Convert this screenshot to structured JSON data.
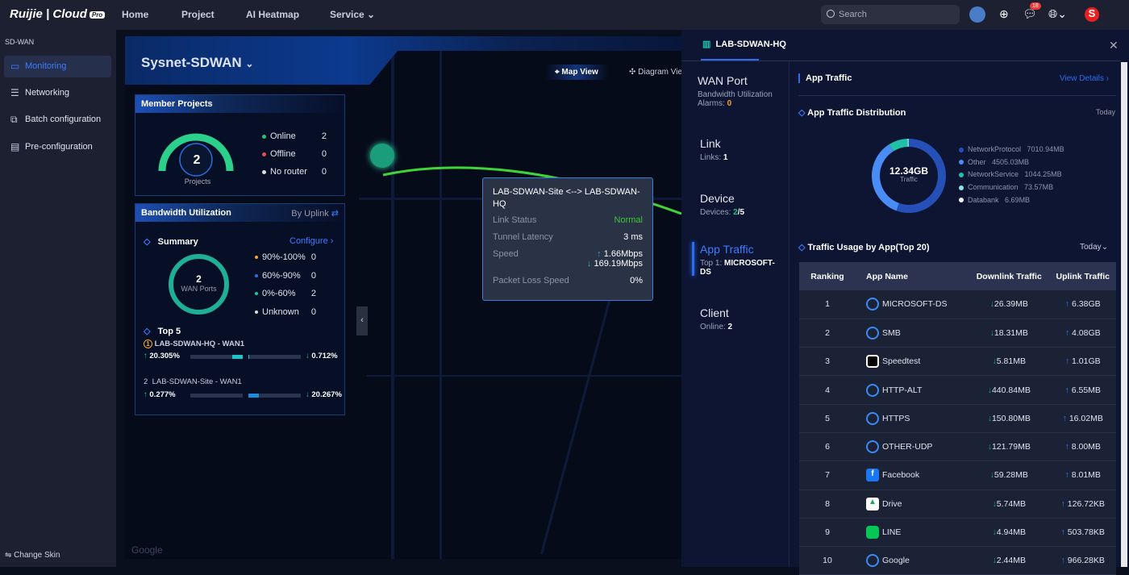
{
  "topbar": {
    "brand": "Ruijie | Cloud",
    "brand_badge": "Pro",
    "nav": [
      "Home",
      "Project",
      "AI Heatmap",
      "Service"
    ],
    "search_placeholder": "Search",
    "notification_count": "18",
    "avatar_letter": "S"
  },
  "sidebar": {
    "section": "SD-WAN",
    "items": [
      {
        "label": "Monitoring",
        "icon": "monitor-icon",
        "active": true
      },
      {
        "label": "Networking",
        "icon": "sliders-icon"
      },
      {
        "label": "Batch configuration",
        "icon": "batch-icon"
      },
      {
        "label": "Pre-configuration",
        "icon": "preconfig-icon"
      }
    ],
    "footer": "Change Skin"
  },
  "main": {
    "title": "Sysnet-SDWAN",
    "views": [
      "Map View",
      "Diagram View"
    ],
    "map_watermark": "Google",
    "member_projects": {
      "title": "Member Projects",
      "total": "2",
      "gauge_label": "Projects",
      "stats": [
        {
          "label": "Online",
          "value": "2",
          "color": "#22c47a"
        },
        {
          "label": "Offline",
          "value": "0",
          "color": "#f04b4b"
        },
        {
          "label": "No router",
          "value": "0",
          "color": "#dddddd"
        }
      ]
    },
    "bandwidth": {
      "title": "Bandwidth Utilization",
      "by": "By Uplink",
      "summary": "Summary",
      "configure": "Configure",
      "ports": "2",
      "ports_label": "WAN Ports",
      "ranges": [
        {
          "label": "90%-100%",
          "value": "0",
          "color": "#f5a623"
        },
        {
          "label": "60%-90%",
          "value": "0",
          "color": "#2d6cf0"
        },
        {
          "label": "0%-60%",
          "value": "2",
          "color": "#1fc2a8"
        },
        {
          "label": "Unknown",
          "value": "0",
          "color": "#dddddd"
        }
      ],
      "top5_title": "Top 5",
      "top5": [
        {
          "rank": "1",
          "name": "LAB-SDWAN-HQ - WAN1",
          "up": "20.305%",
          "down": "0.712%"
        },
        {
          "rank": "2",
          "name": "LAB-SDWAN-Site - WAN1",
          "up": "0.277%",
          "down": "20.267%"
        }
      ]
    },
    "tooltip": {
      "title": "LAB-SDWAN-Site <--> LAB-SDWAN-HQ",
      "link_status_label": "Link Status",
      "link_status": "Normal",
      "latency_label": "Tunnel Latency",
      "latency": "3 ms",
      "speed_label": "Speed",
      "speed_up": "1.66Mbps",
      "speed_down": "169.19Mbps",
      "loss_label": "Packet Loss Speed",
      "loss": "0%"
    }
  },
  "panel": {
    "title": "LAB-SDWAN-HQ",
    "nav": [
      {
        "title": "WAN Port",
        "sub": "Bandwidth Utilization",
        "sub2": "Alarms: ",
        "val": "0"
      },
      {
        "title": "Link",
        "sub": "Links: ",
        "val": "1"
      },
      {
        "title": "Device",
        "sub": "Devices: ",
        "val": "2",
        "val2": "/5"
      },
      {
        "title": "App Traffic",
        "sub": "Top 1: ",
        "val": "MICROSOFT-DS",
        "active": true
      },
      {
        "title": "Client",
        "sub": "Online: ",
        "val": "2"
      }
    ],
    "section": "App Traffic",
    "view_details": "View Details",
    "dist_title": "App Traffic Distribution",
    "dist_period": "Today",
    "total": "12.34GB",
    "total_label": "Traffic",
    "distribution": [
      {
        "name": "NetworkProtocol",
        "value": "7010.94MB",
        "mb": 7010.94,
        "color": "#2550b8"
      },
      {
        "name": "Other",
        "value": "4505.03MB",
        "mb": 4505.03,
        "color": "#4a8cf5"
      },
      {
        "name": "NetworkService",
        "value": "1044.25MB",
        "mb": 1044.25,
        "color": "#1fc2a8"
      },
      {
        "name": "Communication",
        "value": "73.57MB",
        "mb": 73.57,
        "color": "#8be8e0"
      },
      {
        "name": "Databank",
        "value": "6.69MB",
        "mb": 6.69,
        "color": "#f0f2f8"
      }
    ],
    "usage_title": "Traffic Usage by App(Top 20)",
    "usage_period": "Today",
    "columns": [
      "Ranking",
      "App Name",
      "Downlink Traffic",
      "Uplink Traffic"
    ],
    "rows": [
      [
        "1",
        "MICROSOFT-DS",
        "26.39MB",
        "6.38GB",
        "globe"
      ],
      [
        "2",
        "SMB",
        "18.31MB",
        "4.08GB",
        "globe"
      ],
      [
        "3",
        "Speedtest",
        "5.81MB",
        "1.01GB",
        "speedtest"
      ],
      [
        "4",
        "HTTP-ALT",
        "440.84MB",
        "6.55MB",
        "globe"
      ],
      [
        "5",
        "HTTPS",
        "150.80MB",
        "16.02MB",
        "globe"
      ],
      [
        "6",
        "OTHER-UDP",
        "121.79MB",
        "8.00MB",
        "globe"
      ],
      [
        "7",
        "Facebook",
        "59.28MB",
        "8.01MB",
        "facebook"
      ],
      [
        "8",
        "Drive",
        "5.74MB",
        "126.72KB",
        "drive"
      ],
      [
        "9",
        "LINE",
        "4.94MB",
        "503.78KB",
        "line"
      ],
      [
        "10",
        "Google",
        "2.44MB",
        "966.28KB",
        "globe"
      ]
    ]
  }
}
